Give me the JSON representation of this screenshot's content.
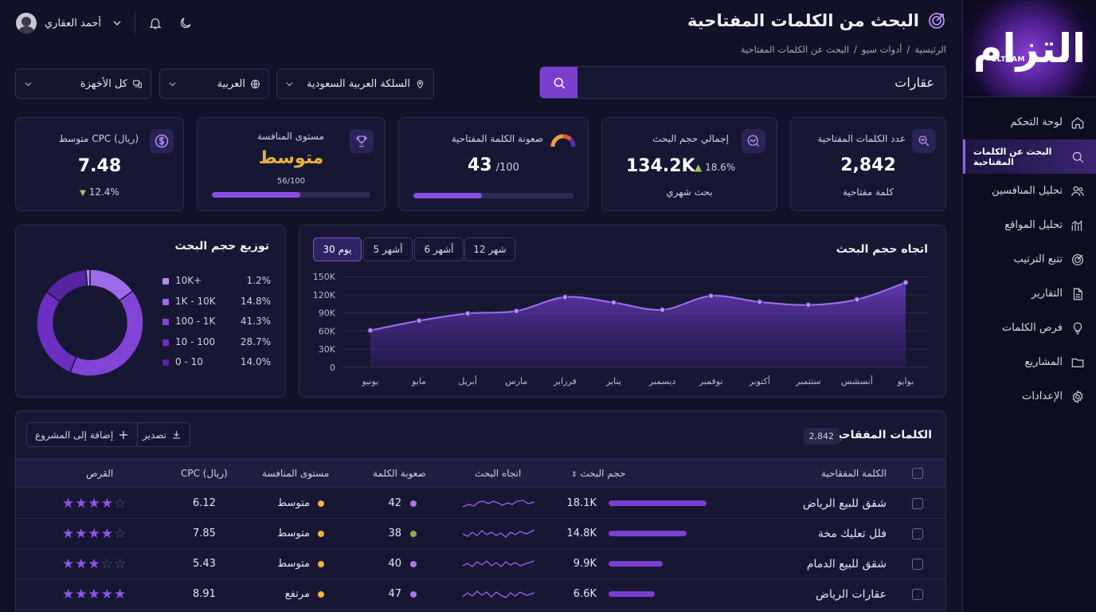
{
  "app": {
    "logo_text": "التزام",
    "logo_latin": "ELTZAM"
  },
  "sidebar": {
    "items": [
      {
        "label": "لوحة التحكم",
        "icon": "home-icon"
      },
      {
        "label": "البحث عن الكلمات المفتاحية",
        "icon": "search-icon",
        "active": true
      },
      {
        "label": "تحليل المنافسين",
        "icon": "users-icon"
      },
      {
        "label": "تحليل المواقع",
        "icon": "analytics-icon"
      },
      {
        "label": "تتبع الترتيب",
        "icon": "target-icon"
      },
      {
        "label": "التقارير",
        "icon": "document-icon"
      },
      {
        "label": "فرص الكلمات",
        "icon": "lightbulb-icon"
      },
      {
        "label": "المشاريع",
        "icon": "folder-icon"
      },
      {
        "label": "الإعدادات",
        "icon": "gear-icon"
      }
    ]
  },
  "header": {
    "title": "البحث من الكلمات المفتاحية",
    "breadcrumb": [
      "الرئيسية",
      "أدوات سيو",
      "البحث عن الكلمات المفتاحية"
    ],
    "user_name": "أحمد العقاري"
  },
  "search": {
    "value": "عقارات",
    "country": "السلكة العربية السعودية",
    "language": "العربية",
    "device": "كل الأخهزة"
  },
  "stats": {
    "keywords_count": {
      "label": "عدد الكلمات المفتاحية",
      "value": "2,842",
      "sub": "كلمة مفتاحية"
    },
    "search_volume": {
      "label": "إجمالي حجم البحث",
      "value": "134.2K",
      "change": "18.6%",
      "sub": "بحث شهري"
    },
    "difficulty": {
      "label": "صعونة الكلمة المفتاحية",
      "value": "43",
      "max": "/100",
      "fraction": 0.43
    },
    "competition": {
      "label": "مستوى المنافسة",
      "value": "متوسط",
      "score": "56/100",
      "fraction": 0.56
    },
    "cpc": {
      "label": "متوسط CPC (ريال)",
      "value": "7.48",
      "change": "12.4%"
    }
  },
  "trend": {
    "title": "اتجاه حجم البحث",
    "ranges": [
      "12 شهر",
      "6 أشهر",
      "5 أشهر",
      "30 يوم"
    ],
    "active_range": "30 يوم"
  },
  "chart_data": [
    {
      "type": "area",
      "title": "اتجاه حجم البحث",
      "categories": [
        "يونيو",
        "مايو",
        "أبريل",
        "مارس",
        "فرراير",
        "يناير",
        "ديسمبر",
        "توفمبر",
        "أكتوبر",
        "ستتمبر",
        "أنسشس",
        "بوايو"
      ],
      "values": [
        61000,
        77000,
        89000,
        93000,
        116000,
        107000,
        95000,
        118000,
        108000,
        103000,
        112000,
        140000
      ],
      "ylim": [
        0,
        150000
      ],
      "yticks": [
        "0",
        "30K",
        "60K",
        "90K",
        "120K",
        "150K"
      ],
      "grid": true
    },
    {
      "type": "pie",
      "title": "توزيع حجم البحث",
      "labels": [
        "10K+",
        "1K - 10K",
        "100 - 1K",
        "10 - 100",
        "0 - 10"
      ],
      "values": [
        1.2,
        14.8,
        41.3,
        28.7,
        14.0
      ],
      "value_labels": [
        "1.2%",
        "14.8%",
        "41.3%",
        "28.7%",
        "14.0%"
      ],
      "colors": [
        "#b48ef0",
        "#9d6ae8",
        "#8244d6",
        "#6a2fc0",
        "#56249f"
      ],
      "legend": "right"
    }
  ],
  "table": {
    "title": "الكلمات المفقاحية",
    "count": "2,842",
    "export_label": "تصدير",
    "add_label": "إضافة إلى المشروع",
    "headers": [
      "الكلمة المفقاحية",
      "حجم البحث",
      "اتجاه البحث",
      "صعوبة الكلمة",
      "مستوى المنافسة",
      "CPC (ريال)",
      "القرص"
    ],
    "rows": [
      {
        "keyword": "شقق للبيع الرياض",
        "volume": "18.1K",
        "volume_frac": 1.0,
        "difficulty": "42",
        "diff_color": "#a67be8",
        "competition": "متوسط",
        "comp_color": "#f0b53a",
        "cpc": "6.12",
        "stars": 4
      },
      {
        "keyword": "فلل تعليك مخة",
        "volume": "14.8K",
        "volume_frac": 0.8,
        "difficulty": "38",
        "diff_color": "#8bb34a",
        "competition": "متوسط",
        "comp_color": "#f0b53a",
        "cpc": "7.85",
        "stars": 4
      },
      {
        "keyword": "شقق للبيع الدمام",
        "volume": "9.9K",
        "volume_frac": 0.55,
        "difficulty": "40",
        "diff_color": "#a67be8",
        "competition": "متوسط",
        "comp_color": "#f0b53a",
        "cpc": "5.43",
        "stars": 3
      },
      {
        "keyword": "عقارات الرياض",
        "volume": "6.6K",
        "volume_frac": 0.47,
        "difficulty": "47",
        "diff_color": "#a67be8",
        "competition": "مرتفع",
        "comp_color": "#f0b53a",
        "cpc": "8.91",
        "stars": 5
      }
    ]
  },
  "colors": {
    "accent": "#7b3fd0",
    "background": "#111127",
    "card": "#171733",
    "gold": "#e8b03c"
  }
}
